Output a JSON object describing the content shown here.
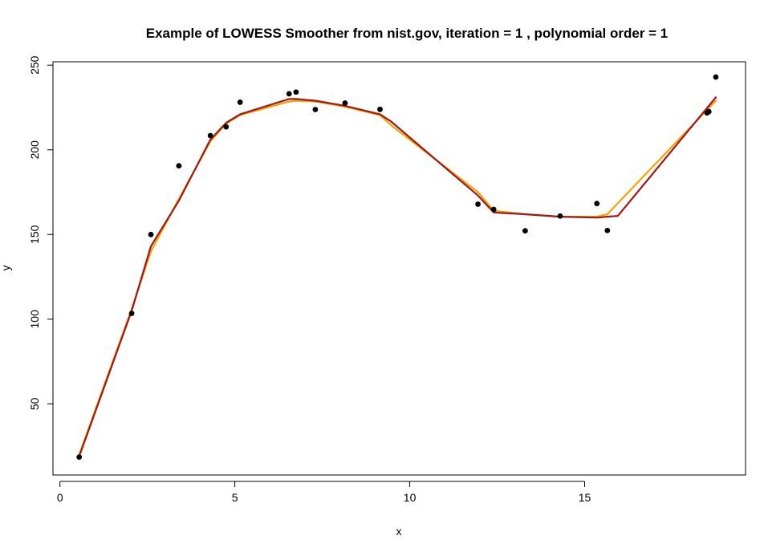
{
  "chart_data": {
    "type": "scatter",
    "title": "Example of LOWESS Smoother from nist.gov, iteration =  1 , polynomial order = 1",
    "xlabel": "x",
    "ylabel": "y",
    "xlim": [
      -0.2,
      19.6
    ],
    "ylim": [
      8,
      252
    ],
    "xticks": [
      0,
      5,
      10,
      15
    ],
    "yticks": [
      50,
      100,
      150,
      200,
      250
    ],
    "grid": false,
    "legend": "none",
    "points": {
      "x": [
        0.55,
        2.05,
        2.6,
        3.4,
        4.3,
        4.75,
        5.15,
        6.55,
        6.75,
        7.3,
        8.15,
        9.15,
        11.95,
        12.4,
        13.3,
        14.3,
        15.35,
        15.65,
        18.5,
        18.55,
        18.75
      ],
      "y": [
        18.6,
        103.4,
        150.0,
        190.6,
        208.4,
        213.6,
        228.1,
        233.1,
        234.1,
        223.8,
        227.6,
        223.9,
        167.9,
        164.8,
        152.2,
        160.9,
        168.3,
        152.4,
        221.8,
        222.6,
        243.0
      ]
    },
    "series": [
      {
        "color": "#f5a300",
        "x": [
          0.55,
          2.05,
          2.6,
          3.4,
          4.3,
          4.75,
          5.15,
          6.55,
          6.75,
          7.3,
          8.15,
          9.15,
          9.5,
          11.95,
          12.4,
          13.3,
          14.3,
          15.35,
          15.65,
          18.75
        ],
        "y": [
          20.0,
          106.0,
          140.0,
          171.0,
          205.0,
          215.5,
          220.5,
          228.5,
          229.0,
          228.5,
          225.5,
          220.5,
          214.0,
          175.0,
          164.0,
          162.0,
          160.5,
          160.5,
          162.0,
          229.0
        ]
      },
      {
        "color": "#a01818",
        "x": [
          0.55,
          2.05,
          2.6,
          3.4,
          4.3,
          4.75,
          5.15,
          6.55,
          6.75,
          7.3,
          8.15,
          9.15,
          9.45,
          11.95,
          12.4,
          13.3,
          14.3,
          15.35,
          15.65,
          15.95,
          18.75
        ],
        "y": [
          19.0,
          105.0,
          143.0,
          170.0,
          206.0,
          216.0,
          221.0,
          230.0,
          230.0,
          229.0,
          226.0,
          221.0,
          217.0,
          173.0,
          163.0,
          162.0,
          160.5,
          160.0,
          160.5,
          161.0,
          231.0
        ]
      }
    ]
  }
}
